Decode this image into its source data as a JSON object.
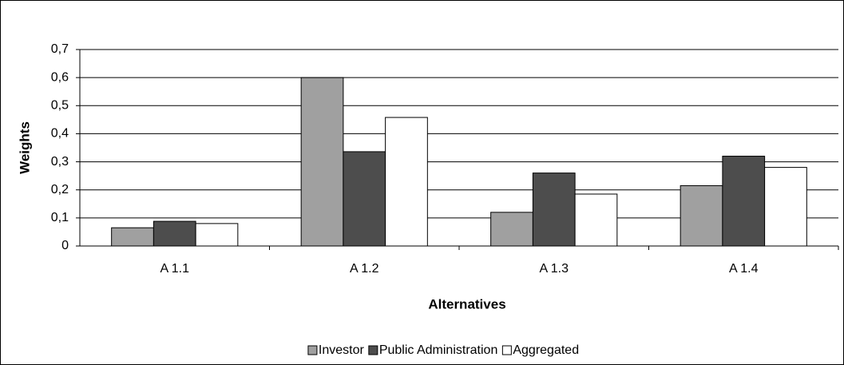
{
  "chart_data": {
    "type": "bar",
    "x_label": "Alternatives",
    "y_label": "Weights",
    "categories": [
      "A 1.1",
      "A 1.2",
      "A 1.3",
      "A 1.4"
    ],
    "series": [
      {
        "name": "Investor",
        "color": "#a0a0a0",
        "values": [
          0.065,
          0.6,
          0.12,
          0.215
        ]
      },
      {
        "name": "Public Administration",
        "color": "#4d4d4d",
        "values": [
          0.088,
          0.336,
          0.26,
          0.32
        ]
      },
      {
        "name": "Aggregated",
        "color": "#ffffff",
        "values": [
          0.08,
          0.458,
          0.185,
          0.28
        ]
      }
    ],
    "ylim": [
      0,
      0.7
    ],
    "yticks": [
      0,
      {
        "value": 0.1,
        "label": "0,1"
      },
      {
        "value": 0.2,
        "label": "0,2"
      },
      {
        "value": 0.3,
        "label": "0,3"
      },
      {
        "value": 0.4,
        "label": "0,4"
      },
      {
        "value": 0.5,
        "label": "0,5"
      },
      {
        "value": 0.6,
        "label": "0,6"
      },
      {
        "value": 0.7,
        "label": "0,7"
      }
    ],
    "grid": true,
    "legend": "bottom"
  }
}
